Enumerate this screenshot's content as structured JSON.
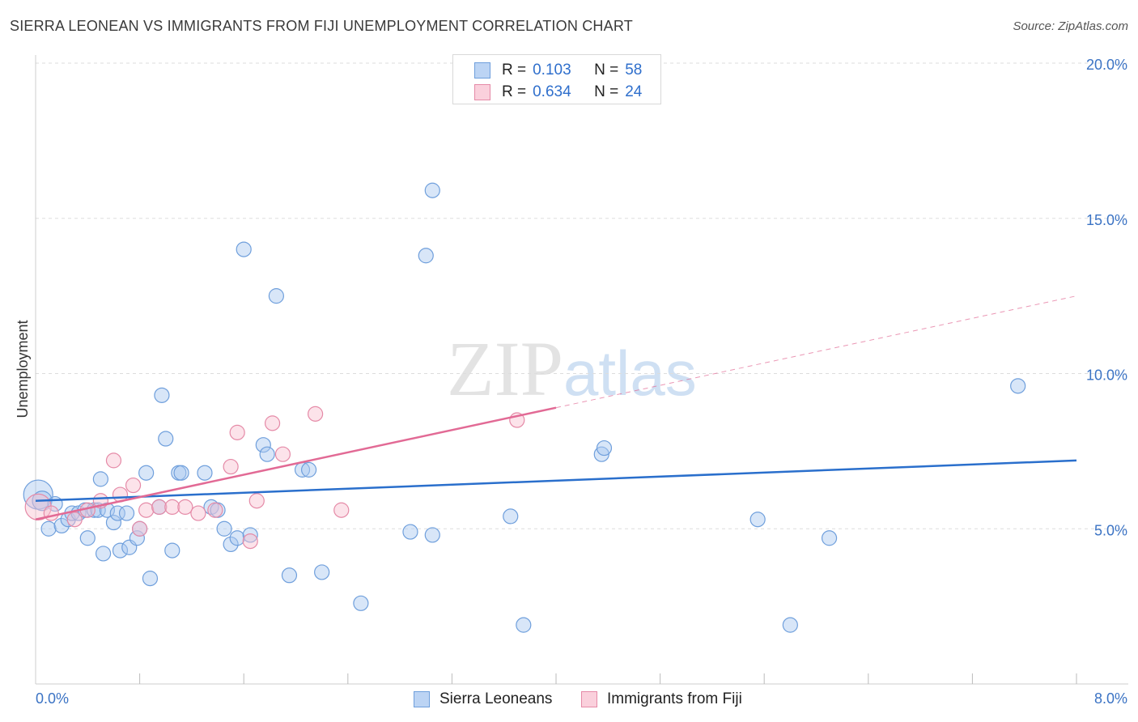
{
  "header": {
    "title": "SIERRA LEONEAN VS IMMIGRANTS FROM FIJI UNEMPLOYMENT CORRELATION CHART",
    "source": "Source: ZipAtlas.com"
  },
  "watermark": {
    "zip": "ZIP",
    "atlas": "atlas"
  },
  "legend": {
    "rows": [
      {
        "r_label": "R =",
        "r_value": "0.103",
        "n_label": "N =",
        "n_value": "58",
        "color": "#a8c8f0",
        "border": "#6f9fdc"
      },
      {
        "r_label": "R =",
        "r_value": "0.634",
        "n_label": "N =",
        "n_value": "24",
        "color": "#f8c0d0",
        "border": "#e58aa7"
      }
    ]
  },
  "bottom_legend": {
    "series1": "Sierra Leoneans",
    "series2": "Immigrants from Fiji"
  },
  "colors": {
    "blue_fill": "rgba(168,200,240,0.45)",
    "blue_stroke": "#6f9fdc",
    "blue_line": "#2a6fcc",
    "pink_fill": "rgba(248,192,208,0.45)",
    "pink_stroke": "#e58aa7",
    "pink_line": "#e26a95",
    "grid": "#dddddd",
    "axis": "#cccccc"
  },
  "chart_data": {
    "type": "scatter",
    "title": "SIERRA LEONEAN VS IMMIGRANTS FROM FIJI UNEMPLOYMENT CORRELATION CHART",
    "xlabel": "",
    "ylabel": "Unemployment",
    "xlim": [
      0,
      8
    ],
    "ylim": [
      0,
      20
    ],
    "x_tick_labels": [
      {
        "value": 0,
        "label": "0.0%"
      },
      {
        "value": 8,
        "label": "8.0%"
      }
    ],
    "y_tick_labels": [
      {
        "value": 5,
        "label": "5.0%"
      },
      {
        "value": 10,
        "label": "10.0%"
      },
      {
        "value": 15,
        "label": "15.0%"
      },
      {
        "value": 20,
        "label": "20.0%"
      }
    ],
    "series": [
      {
        "name": "Sierra Leoneans",
        "R": 0.103,
        "N": 58,
        "trend": {
          "x0": 0,
          "y0": 5.9,
          "x1": 8,
          "y1": 7.2,
          "solid_until": 8
        },
        "points": [
          [
            0.02,
            6.1,
            18
          ],
          [
            0.05,
            5.9,
            12
          ],
          [
            0.15,
            5.8,
            9
          ],
          [
            0.1,
            5.0,
            9
          ],
          [
            0.2,
            5.1,
            9
          ],
          [
            0.25,
            5.3,
            9
          ],
          [
            0.28,
            5.5,
            9
          ],
          [
            0.33,
            5.5,
            9
          ],
          [
            0.38,
            5.6,
            9
          ],
          [
            0.4,
            4.7,
            9
          ],
          [
            0.45,
            5.6,
            9
          ],
          [
            0.48,
            5.6,
            9
          ],
          [
            0.5,
            6.6,
            9
          ],
          [
            0.52,
            4.2,
            9
          ],
          [
            0.55,
            5.6,
            9
          ],
          [
            0.6,
            5.2,
            9
          ],
          [
            0.63,
            5.5,
            9
          ],
          [
            0.65,
            4.3,
            9
          ],
          [
            0.7,
            5.5,
            9
          ],
          [
            0.72,
            4.4,
            9
          ],
          [
            0.78,
            4.7,
            9
          ],
          [
            0.8,
            5.0,
            9
          ],
          [
            0.85,
            6.8,
            9
          ],
          [
            0.88,
            3.4,
            9
          ],
          [
            0.95,
            5.7,
            9
          ],
          [
            0.97,
            9.3,
            9
          ],
          [
            1.0,
            7.9,
            9
          ],
          [
            1.05,
            4.3,
            9
          ],
          [
            1.1,
            6.8,
            9
          ],
          [
            1.12,
            6.8,
            9
          ],
          [
            1.3,
            6.8,
            9
          ],
          [
            1.35,
            5.7,
            9
          ],
          [
            1.4,
            5.6,
            9
          ],
          [
            1.45,
            5.0,
            9
          ],
          [
            1.5,
            4.5,
            9
          ],
          [
            1.55,
            4.7,
            9
          ],
          [
            1.6,
            14.0,
            9
          ],
          [
            1.65,
            4.8,
            9
          ],
          [
            1.75,
            7.7,
            9
          ],
          [
            1.78,
            7.4,
            9
          ],
          [
            1.85,
            12.5,
            9
          ],
          [
            1.95,
            3.5,
            9
          ],
          [
            2.05,
            6.9,
            9
          ],
          [
            2.1,
            6.9,
            9
          ],
          [
            2.2,
            3.6,
            9
          ],
          [
            2.5,
            2.6,
            9
          ],
          [
            2.88,
            4.9,
            9
          ],
          [
            3.05,
            4.8,
            9
          ],
          [
            3.0,
            13.8,
            9
          ],
          [
            3.05,
            15.9,
            9
          ],
          [
            3.65,
            5.4,
            9
          ],
          [
            3.75,
            1.9,
            9
          ],
          [
            4.35,
            7.4,
            9
          ],
          [
            4.37,
            7.6,
            9
          ],
          [
            5.55,
            5.3,
            9
          ],
          [
            5.8,
            1.9,
            9
          ],
          [
            6.1,
            4.7,
            9
          ],
          [
            7.55,
            9.6,
            9
          ]
        ]
      },
      {
        "name": "Immigrants from Fiji",
        "R": 0.634,
        "N": 24,
        "trend": {
          "x0": 0,
          "y0": 5.3,
          "x1": 8,
          "y1": 12.5,
          "solid_until": 4.0
        },
        "points": [
          [
            0.02,
            5.7,
            16
          ],
          [
            0.12,
            5.5,
            9
          ],
          [
            0.3,
            5.3,
            9
          ],
          [
            0.4,
            5.6,
            9
          ],
          [
            0.5,
            5.9,
            9
          ],
          [
            0.6,
            7.2,
            9
          ],
          [
            0.65,
            6.1,
            9
          ],
          [
            0.75,
            6.4,
            9
          ],
          [
            0.8,
            5.0,
            9
          ],
          [
            0.85,
            5.6,
            9
          ],
          [
            0.95,
            5.7,
            9
          ],
          [
            1.05,
            5.7,
            9
          ],
          [
            1.15,
            5.7,
            9
          ],
          [
            1.25,
            5.5,
            9
          ],
          [
            1.38,
            5.6,
            9
          ],
          [
            1.5,
            7.0,
            9
          ],
          [
            1.55,
            8.1,
            9
          ],
          [
            1.65,
            4.6,
            9
          ],
          [
            1.7,
            5.9,
            9
          ],
          [
            1.82,
            8.4,
            9
          ],
          [
            1.9,
            7.4,
            9
          ],
          [
            2.15,
            8.7,
            9
          ],
          [
            2.35,
            5.6,
            9
          ],
          [
            3.7,
            8.5,
            9
          ]
        ]
      }
    ]
  }
}
